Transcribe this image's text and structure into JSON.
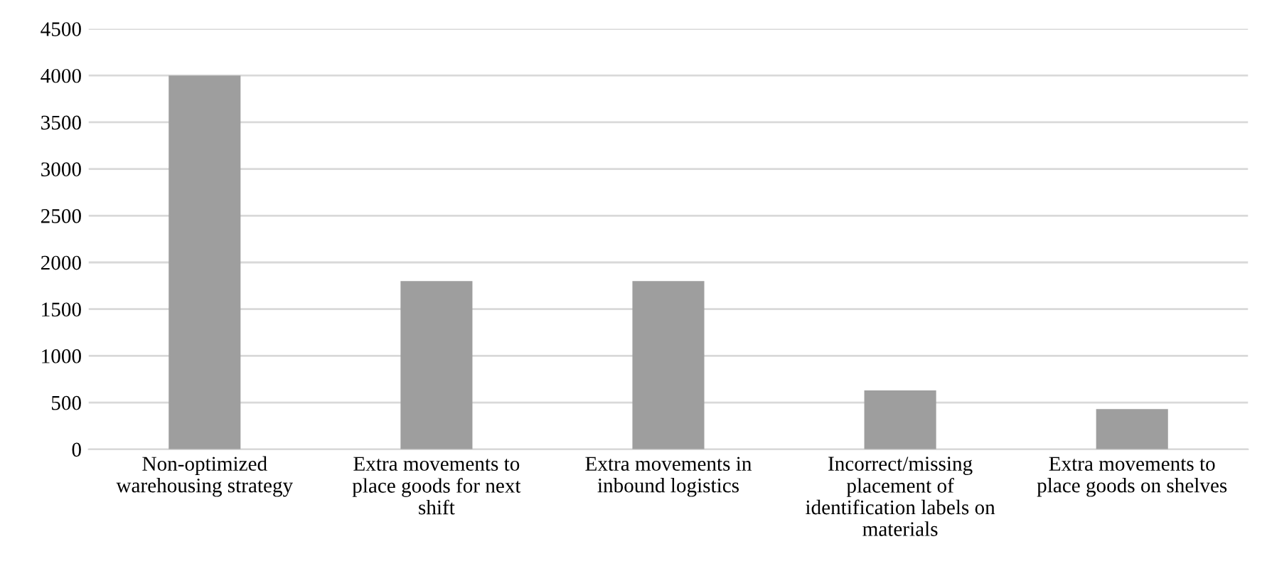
{
  "chart_data": {
    "type": "bar",
    "categories": [
      "Non-optimized\nwarehousing strategy",
      "Extra movements to\nplace goods for next\nshift",
      "Extra movements in\ninbound logistics",
      "Incorrect/missing\nplacement of\nidentification labels on\nmaterials",
      "Extra movements to\nplace goods on shelves"
    ],
    "values": [
      4000,
      1800,
      1800,
      630,
      430
    ],
    "color": "#9e9e9e",
    "ylim": [
      0,
      4500
    ],
    "yticks": [
      0,
      500,
      1000,
      1500,
      2000,
      2500,
      3000,
      3500,
      4000,
      4500
    ],
    "grid": "y"
  }
}
